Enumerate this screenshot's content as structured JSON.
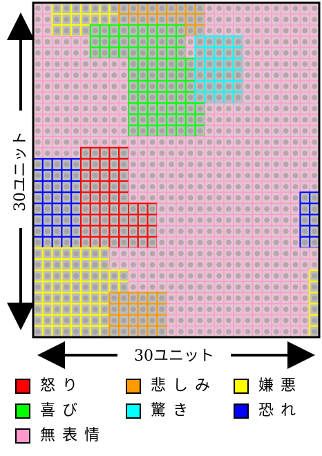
{
  "axes": {
    "x_label": "30ユニット",
    "y_label": "30ユニット"
  },
  "grid": {
    "rows": 30,
    "cols": 30,
    "regions": [
      {
        "label": "怒り",
        "color": "#ff0000",
        "cells": "rows 13-21, cols 5-9 (plus lower-right extension)"
      },
      {
        "label": "悲しみ",
        "color": "#ff9900",
        "cells": "top band rows 0-2 cols 9-17; bottom rows 26-29 cols 8-13"
      },
      {
        "label": "嫌悪",
        "color": "#ffff00",
        "cells": "top-left rows 0-2 cols 2-8; bottom-left rows 21-29 cols 0-7"
      },
      {
        "label": "喜び",
        "color": "#00ff00",
        "cells": "diagonal band rows 2-11"
      },
      {
        "label": "驚き",
        "color": "#00ffff",
        "cells": "rows 2-8 cols 16-20"
      },
      {
        "label": "恐れ",
        "color": "#0000ff",
        "cells": "left rows 14-21 cols 0-4; right edge rows 16-21"
      },
      {
        "label": "無表情",
        "color": "#ff99cc",
        "cells": "background"
      }
    ]
  },
  "legend": {
    "items": [
      {
        "label": "怒り",
        "color": "#ff0000"
      },
      {
        "label": "悲しみ",
        "color": "#ff9900"
      },
      {
        "label": "嫌悪",
        "color": "#ffff00"
      },
      {
        "label": "喜び",
        "color": "#00ff00"
      },
      {
        "label": "驚き",
        "color": "#00ffff"
      },
      {
        "label": "恐れ",
        "color": "#0000ff"
      },
      {
        "label": "無表情",
        "color": "#ff99cc"
      }
    ]
  }
}
